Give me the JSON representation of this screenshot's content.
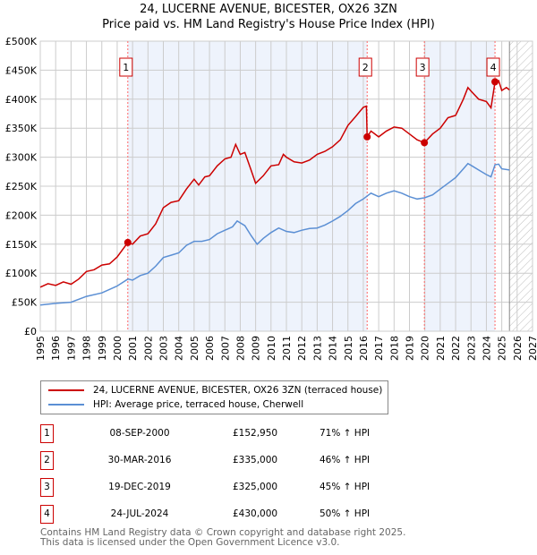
{
  "chart_data": {
    "type": "line",
    "title": "24, LUCERNE AVENUE, BICESTER, OX26 3ZN",
    "subtitle": "Price paid vs. HM Land Registry's House Price Index (HPI)",
    "xlim": [
      1995,
      2027
    ],
    "ylim": [
      0,
      500000
    ],
    "x_ticks": [
      "1995",
      "1996",
      "1997",
      "1998",
      "1999",
      "2000",
      "2001",
      "2002",
      "2003",
      "2004",
      "2005",
      "2006",
      "2007",
      "2008",
      "2009",
      "2010",
      "2011",
      "2012",
      "2013",
      "2014",
      "2015",
      "2016",
      "2017",
      "2018",
      "2019",
      "2020",
      "2021",
      "2022",
      "2023",
      "2024",
      "2025",
      "2026",
      "2027"
    ],
    "y_ticks": [
      {
        "v": 0,
        "label": "£0"
      },
      {
        "v": 50000,
        "label": "£50K"
      },
      {
        "v": 100000,
        "label": "£100K"
      },
      {
        "v": 150000,
        "label": "£150K"
      },
      {
        "v": 200000,
        "label": "£200K"
      },
      {
        "v": 250000,
        "label": "£250K"
      },
      {
        "v": 300000,
        "label": "£300K"
      },
      {
        "v": 350000,
        "label": "£350K"
      },
      {
        "v": 400000,
        "label": "£400K"
      },
      {
        "v": 450000,
        "label": "£450K"
      },
      {
        "v": 500000,
        "label": "£500K"
      }
    ],
    "forecast_start": 2025.5,
    "series": [
      {
        "name": "24, LUCERNE AVENUE, BICESTER, OX26 3ZN (terraced house)",
        "color": "#cc0000",
        "points": [
          [
            1995,
            76
          ],
          [
            1995.5,
            82
          ],
          [
            1996,
            79
          ],
          [
            1996.5,
            85
          ],
          [
            1997,
            81
          ],
          [
            1997.5,
            90
          ],
          [
            1998,
            103
          ],
          [
            1998.5,
            106
          ],
          [
            1999,
            114
          ],
          [
            1999.5,
            116
          ],
          [
            2000,
            128
          ],
          [
            2000.69,
            153
          ],
          [
            2001,
            150
          ],
          [
            2001.5,
            164
          ],
          [
            2002,
            168
          ],
          [
            2002.5,
            185
          ],
          [
            2003,
            213
          ],
          [
            2003.5,
            222
          ],
          [
            2004,
            225
          ],
          [
            2004.5,
            245
          ],
          [
            2005,
            262
          ],
          [
            2005.3,
            252
          ],
          [
            2005.7,
            266
          ],
          [
            2006,
            268
          ],
          [
            2006.5,
            285
          ],
          [
            2007,
            297
          ],
          [
            2007.4,
            300
          ],
          [
            2007.7,
            322
          ],
          [
            2008,
            305
          ],
          [
            2008.3,
            308
          ],
          [
            2008.7,
            278
          ],
          [
            2009,
            255
          ],
          [
            2009.5,
            268
          ],
          [
            2010,
            285
          ],
          [
            2010.5,
            287
          ],
          [
            2010.8,
            305
          ],
          [
            2011,
            300
          ],
          [
            2011.5,
            292
          ],
          [
            2012,
            290
          ],
          [
            2012.5,
            295
          ],
          [
            2013,
            305
          ],
          [
            2013.5,
            310
          ],
          [
            2014,
            318
          ],
          [
            2014.5,
            330
          ],
          [
            2015,
            355
          ],
          [
            2015.5,
            370
          ],
          [
            2016,
            386
          ],
          [
            2016.2,
            388
          ],
          [
            2016.25,
            335
          ],
          [
            2016.5,
            345
          ],
          [
            2017,
            335
          ],
          [
            2017.5,
            345
          ],
          [
            2018,
            352
          ],
          [
            2018.5,
            350
          ],
          [
            2019,
            340
          ],
          [
            2019.5,
            330
          ],
          [
            2019.97,
            325
          ],
          [
            2020.5,
            340
          ],
          [
            2021,
            350
          ],
          [
            2021.5,
            368
          ],
          [
            2022,
            372
          ],
          [
            2022.5,
            400
          ],
          [
            2022.8,
            420
          ],
          [
            2023,
            414
          ],
          [
            2023.5,
            400
          ],
          [
            2024,
            396
          ],
          [
            2024.3,
            385
          ],
          [
            2024.56,
            430
          ],
          [
            2024.8,
            432
          ],
          [
            2025,
            415
          ],
          [
            2025.3,
            420
          ],
          [
            2025.5,
            416
          ]
        ]
      },
      {
        "name": "HPI: Average price, terraced house, Cherwell",
        "color": "#5b8fd4",
        "points": [
          [
            1995,
            45
          ],
          [
            1996,
            48
          ],
          [
            1997,
            50
          ],
          [
            1998,
            60
          ],
          [
            1999,
            66
          ],
          [
            2000,
            78
          ],
          [
            2000.7,
            90
          ],
          [
            2001,
            88
          ],
          [
            2001.5,
            96
          ],
          [
            2002,
            100
          ],
          [
            2002.5,
            112
          ],
          [
            2003,
            127
          ],
          [
            2003.5,
            131
          ],
          [
            2004,
            135
          ],
          [
            2004.5,
            148
          ],
          [
            2005,
            155
          ],
          [
            2005.5,
            155
          ],
          [
            2006,
            158
          ],
          [
            2006.5,
            168
          ],
          [
            2007,
            174
          ],
          [
            2007.5,
            180
          ],
          [
            2007.8,
            190
          ],
          [
            2008.3,
            182
          ],
          [
            2008.7,
            165
          ],
          [
            2009.1,
            150
          ],
          [
            2009.5,
            160
          ],
          [
            2010,
            170
          ],
          [
            2010.5,
            178
          ],
          [
            2011,
            172
          ],
          [
            2011.5,
            170
          ],
          [
            2012,
            174
          ],
          [
            2012.5,
            177
          ],
          [
            2013,
            178
          ],
          [
            2013.5,
            183
          ],
          [
            2014,
            190
          ],
          [
            2014.5,
            198
          ],
          [
            2015,
            208
          ],
          [
            2015.5,
            220
          ],
          [
            2016,
            228
          ],
          [
            2016.5,
            238
          ],
          [
            2017,
            232
          ],
          [
            2017.5,
            238
          ],
          [
            2018,
            242
          ],
          [
            2018.5,
            238
          ],
          [
            2019,
            232
          ],
          [
            2019.5,
            228
          ],
          [
            2019.97,
            230
          ],
          [
            2020.5,
            235
          ],
          [
            2021,
            245
          ],
          [
            2021.5,
            255
          ],
          [
            2022,
            265
          ],
          [
            2022.5,
            280
          ],
          [
            2022.8,
            289
          ],
          [
            2023,
            286
          ],
          [
            2023.5,
            278
          ],
          [
            2024,
            270
          ],
          [
            2024.3,
            266
          ],
          [
            2024.56,
            287
          ],
          [
            2024.8,
            288
          ],
          [
            2025,
            280
          ],
          [
            2025.5,
            278
          ]
        ]
      }
    ],
    "sales": [
      {
        "n": "1",
        "x": 2000.69,
        "price": 152950,
        "date": "08-SEP-2000",
        "price_label": "£152,950",
        "hpi": "71% ↑ HPI"
      },
      {
        "n": "2",
        "x": 2016.25,
        "price": 335000,
        "date": "30-MAR-2016",
        "price_label": "£335,000",
        "hpi": "46% ↑ HPI"
      },
      {
        "n": "3",
        "x": 2019.97,
        "price": 325000,
        "date": "19-DEC-2019",
        "price_label": "£325,000",
        "hpi": "45% ↑ HPI"
      },
      {
        "n": "4",
        "x": 2024.56,
        "price": 430000,
        "date": "24-JUL-2024",
        "price_label": "£430,000",
        "hpi": "50% ↑ HPI"
      }
    ]
  },
  "legend": {
    "property": "24, LUCERNE AVENUE, BICESTER, OX26 3ZN (terraced house)",
    "hpi": "HPI: Average price, terraced house, Cherwell"
  },
  "footer": {
    "line1": "Contains HM Land Registry data © Crown copyright and database right 2025.",
    "line2": "This data is licensed under the Open Government Licence v3.0."
  }
}
